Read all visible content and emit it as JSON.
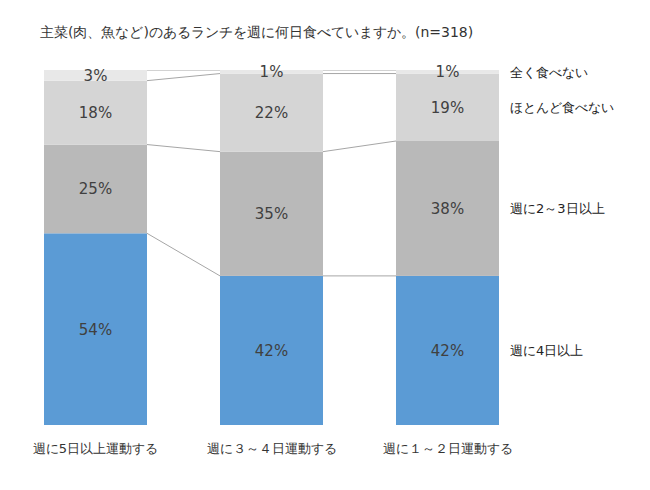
{
  "chart_data": {
    "type": "bar",
    "title": "主菜(肉、魚など)のあるランチを週に何日食べていますか。(n=318)",
    "categories": [
      "週に5日以上運動する",
      "週に３～４日運動する",
      "週に１～２日運動する"
    ],
    "series": [
      {
        "name": "週に4日以上",
        "color": "#5b9bd5",
        "values": [
          54,
          42,
          42
        ],
        "value_labels": [
          "54%",
          "42%",
          "42%"
        ]
      },
      {
        "name": "週に2～3日以上",
        "color": "#b9b9b9",
        "values": [
          25,
          35,
          38
        ],
        "value_labels": [
          "25%",
          "35%",
          "38%"
        ]
      },
      {
        "name": "ほとんど食べない",
        "color": "#d5d5d5",
        "values": [
          18,
          22,
          19
        ],
        "value_labels": [
          "18%",
          "22%",
          "19%"
        ]
      },
      {
        "name": "全く食べない",
        "color": "#e8e8e8",
        "values": [
          3,
          1,
          1
        ],
        "value_labels": [
          "3%",
          "1%",
          "1%"
        ]
      }
    ],
    "ylim": [
      0,
      100
    ],
    "stacked": true,
    "data_labels": true,
    "tick_labels": "x",
    "legend": "right"
  }
}
